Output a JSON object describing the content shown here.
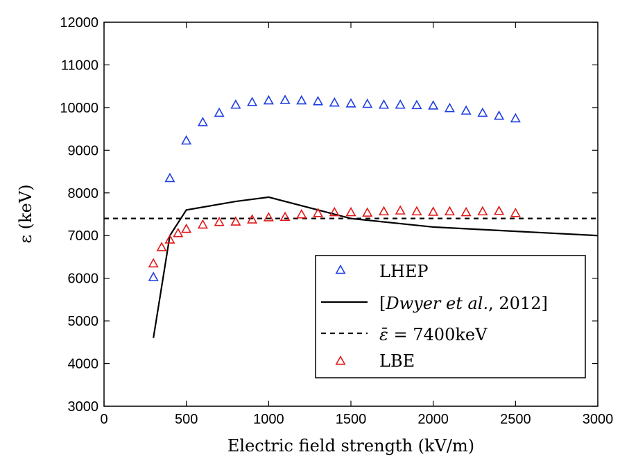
{
  "chart_data": {
    "type": "scatter",
    "xlabel": "Electric field strength (kV/m)",
    "ylabel": "ε (keV)",
    "xlim": [
      0,
      3000
    ],
    "ylim": [
      3000,
      12000
    ],
    "xticks": [
      "0",
      "500",
      "1000",
      "1500",
      "2000",
      "2500",
      "3000"
    ],
    "yticks": [
      "3000",
      "4000",
      "5000",
      "6000",
      "7000",
      "8000",
      "9000",
      "10000",
      "11000",
      "12000"
    ],
    "grid": false,
    "legend_position": "bottom-right",
    "series": [
      {
        "name": "LHEP",
        "kind": "scatter",
        "marker": "triangle",
        "color": "#1f3fe0",
        "x": [
          300,
          400,
          500,
          600,
          700,
          800,
          900,
          1000,
          1100,
          1200,
          1300,
          1400,
          1500,
          1600,
          1700,
          1800,
          1900,
          2000,
          2100,
          2200,
          2300,
          2400,
          2500
        ],
        "y": [
          6020,
          8340,
          9220,
          9650,
          9870,
          10060,
          10120,
          10160,
          10170,
          10160,
          10140,
          10110,
          10090,
          10080,
          10060,
          10060,
          10050,
          10040,
          9980,
          9920,
          9870,
          9800,
          9740
        ]
      },
      {
        "name": "[Dwyer et al., 2012]",
        "kind": "line",
        "style": "solid",
        "color": "#000000",
        "x": [
          300,
          400,
          500,
          800,
          1000,
          1500,
          2000,
          3000
        ],
        "y": [
          4600,
          7000,
          7600,
          7800,
          7900,
          7400,
          7200,
          7000
        ]
      },
      {
        "name": "ε̄ = 7400keV",
        "kind": "line",
        "style": "dashed",
        "color": "#000000",
        "x": [
          0,
          3000
        ],
        "y": [
          7400,
          7400
        ]
      },
      {
        "name": "LBE",
        "kind": "scatter",
        "marker": "triangle",
        "color": "#e01818",
        "x": [
          300,
          350,
          400,
          450,
          500,
          600,
          700,
          800,
          900,
          1000,
          1100,
          1200,
          1300,
          1400,
          1500,
          1600,
          1700,
          1800,
          1900,
          2000,
          2100,
          2200,
          2300,
          2400,
          2500
        ],
        "y": [
          6340,
          6720,
          6900,
          7050,
          7150,
          7250,
          7310,
          7320,
          7370,
          7420,
          7430,
          7490,
          7520,
          7540,
          7540,
          7530,
          7560,
          7580,
          7560,
          7550,
          7560,
          7540,
          7560,
          7570,
          7520
        ]
      }
    ],
    "legend": [
      {
        "label": "LHEP",
        "symbol": "triangle",
        "color": "#1f3fe0"
      },
      {
        "label_parts": [
          "[",
          "Dwyer et al.",
          ", 2012]"
        ],
        "symbol": "solid-line",
        "color": "#000000"
      },
      {
        "label_parts": [
          "ε̄",
          " = 7400keV"
        ],
        "symbol": "dashed-line",
        "color": "#000000"
      },
      {
        "label": "LBE",
        "symbol": "triangle",
        "color": "#e01818"
      }
    ]
  }
}
